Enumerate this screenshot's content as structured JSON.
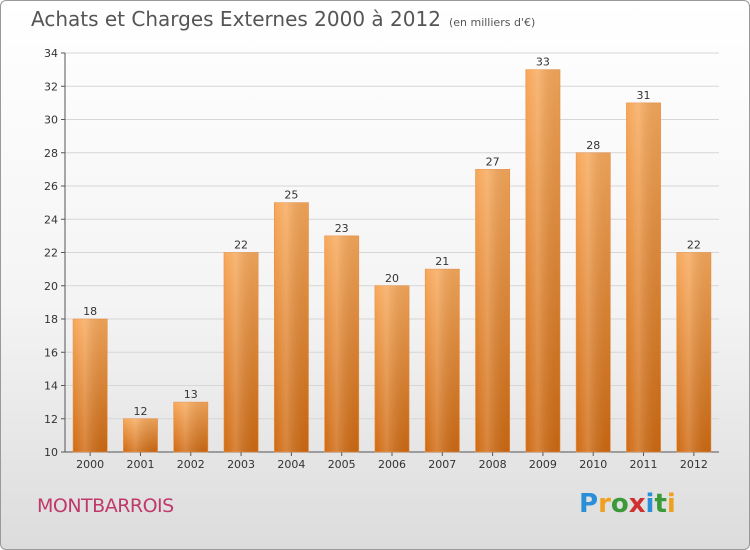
{
  "header": {
    "title": "Achats et Charges Externes 2000 à 2012",
    "subtitle": "(en milliers d'€)"
  },
  "footer": {
    "place": "MONTBARROIS",
    "logo_letters": [
      {
        "char": "P",
        "color": "#2a8fd6"
      },
      {
        "char": "r",
        "color": "#f0a020"
      },
      {
        "char": "o",
        "color": "#3a9a3a"
      },
      {
        "char": "x",
        "color": "#d03030"
      },
      {
        "char": "i",
        "color": "#2a8fd6"
      },
      {
        "char": "t",
        "color": "#3a9a3a"
      },
      {
        "char": "i",
        "color": "#f0a020"
      }
    ]
  },
  "chart_data": {
    "type": "bar",
    "title": "Achats et Charges Externes 2000 à 2012",
    "subtitle": "(en milliers d'€)",
    "categories": [
      "2000",
      "2001",
      "2002",
      "2003",
      "2004",
      "2005",
      "2006",
      "2007",
      "2008",
      "2009",
      "2010",
      "2011",
      "2012"
    ],
    "values": [
      18,
      12,
      13,
      22,
      25,
      23,
      20,
      21,
      27,
      33,
      28,
      31,
      22
    ],
    "ylim": [
      10,
      34
    ],
    "yticks": [
      10,
      12,
      14,
      16,
      18,
      20,
      22,
      24,
      26,
      28,
      30,
      32,
      34
    ],
    "grid": true,
    "bar_color_top": "#f7a85a",
    "bar_color_bottom": "#cf6a12"
  }
}
